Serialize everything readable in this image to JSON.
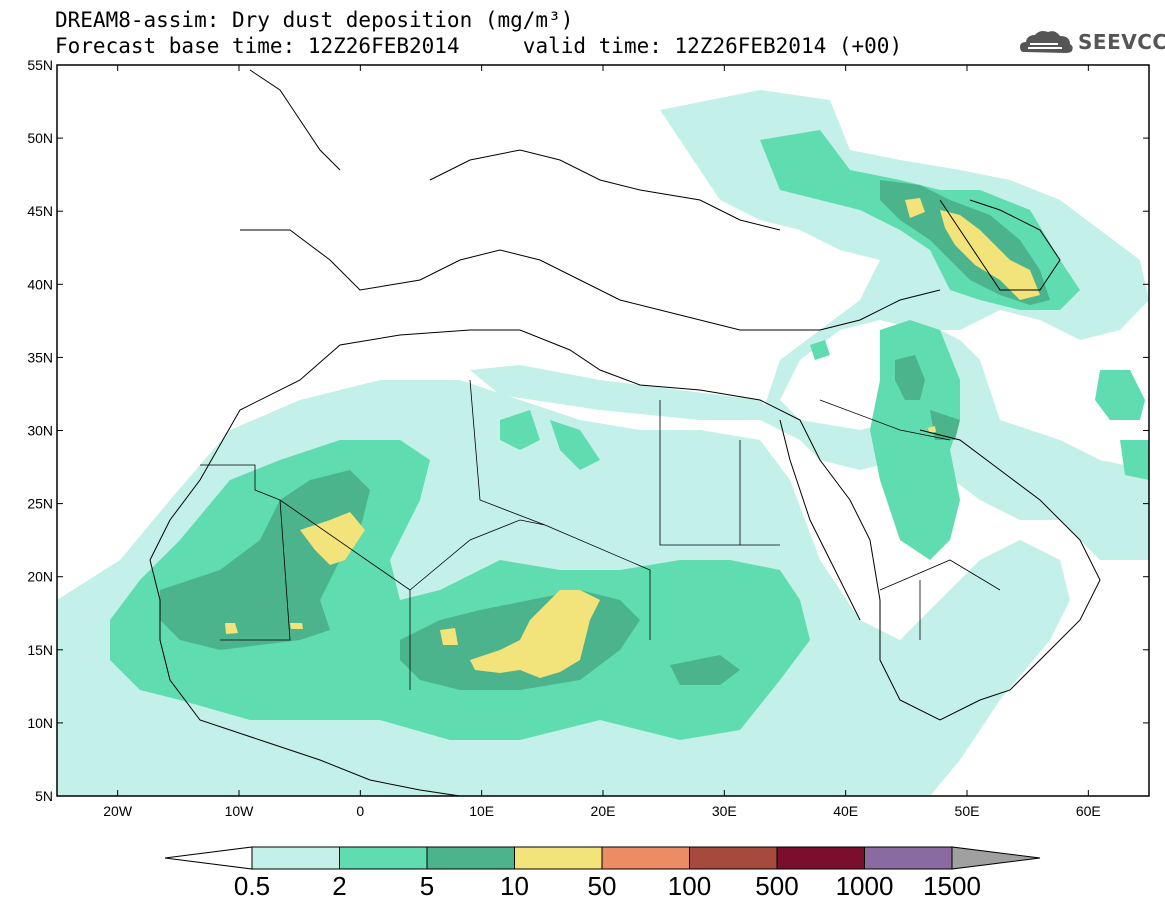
{
  "header": {
    "title": "DREAM8-assim: Dry dust deposition (mg/m³)",
    "forecast_label": "Forecast base time: 12Z26FEB2014",
    "valid_label": "valid time: 12Z26FEB2014 (+00)",
    "logo_text": "SEEVCCC",
    "logo_icon": "cloud-logo-icon"
  },
  "map": {
    "lon_range": [
      -25,
      65
    ],
    "lat_range": [
      5,
      55
    ],
    "lon_ticks": [
      {
        "value": -20,
        "label": "20W"
      },
      {
        "value": -10,
        "label": "10W"
      },
      {
        "value": 0,
        "label": "0"
      },
      {
        "value": 10,
        "label": "10E"
      },
      {
        "value": 20,
        "label": "20E"
      },
      {
        "value": 30,
        "label": "30E"
      },
      {
        "value": 40,
        "label": "40E"
      },
      {
        "value": 50,
        "label": "50E"
      },
      {
        "value": 60,
        "label": "60E"
      }
    ],
    "lat_ticks": [
      {
        "value": 55,
        "label": "55N"
      },
      {
        "value": 50,
        "label": "50N"
      },
      {
        "value": 45,
        "label": "45N"
      },
      {
        "value": 40,
        "label": "40N"
      },
      {
        "value": 35,
        "label": "35N"
      },
      {
        "value": 30,
        "label": "30N"
      },
      {
        "value": 25,
        "label": "25N"
      },
      {
        "value": 20,
        "label": "20N"
      },
      {
        "value": 15,
        "label": "15N"
      },
      {
        "value": 10,
        "label": "10N"
      },
      {
        "value": 5,
        "label": "5N"
      }
    ]
  },
  "legend": {
    "colors": [
      "#c3f0e8",
      "#5fdcb0",
      "#4cb48c",
      "#f2e37a",
      "#eb8c64",
      "#a64a3e",
      "#7a0e2c",
      "#8a6aa0",
      "#a0a0a0"
    ],
    "labels": [
      "0.5",
      "2",
      "5",
      "10",
      "50",
      "100",
      "500",
      "1000",
      "1500"
    ]
  }
}
